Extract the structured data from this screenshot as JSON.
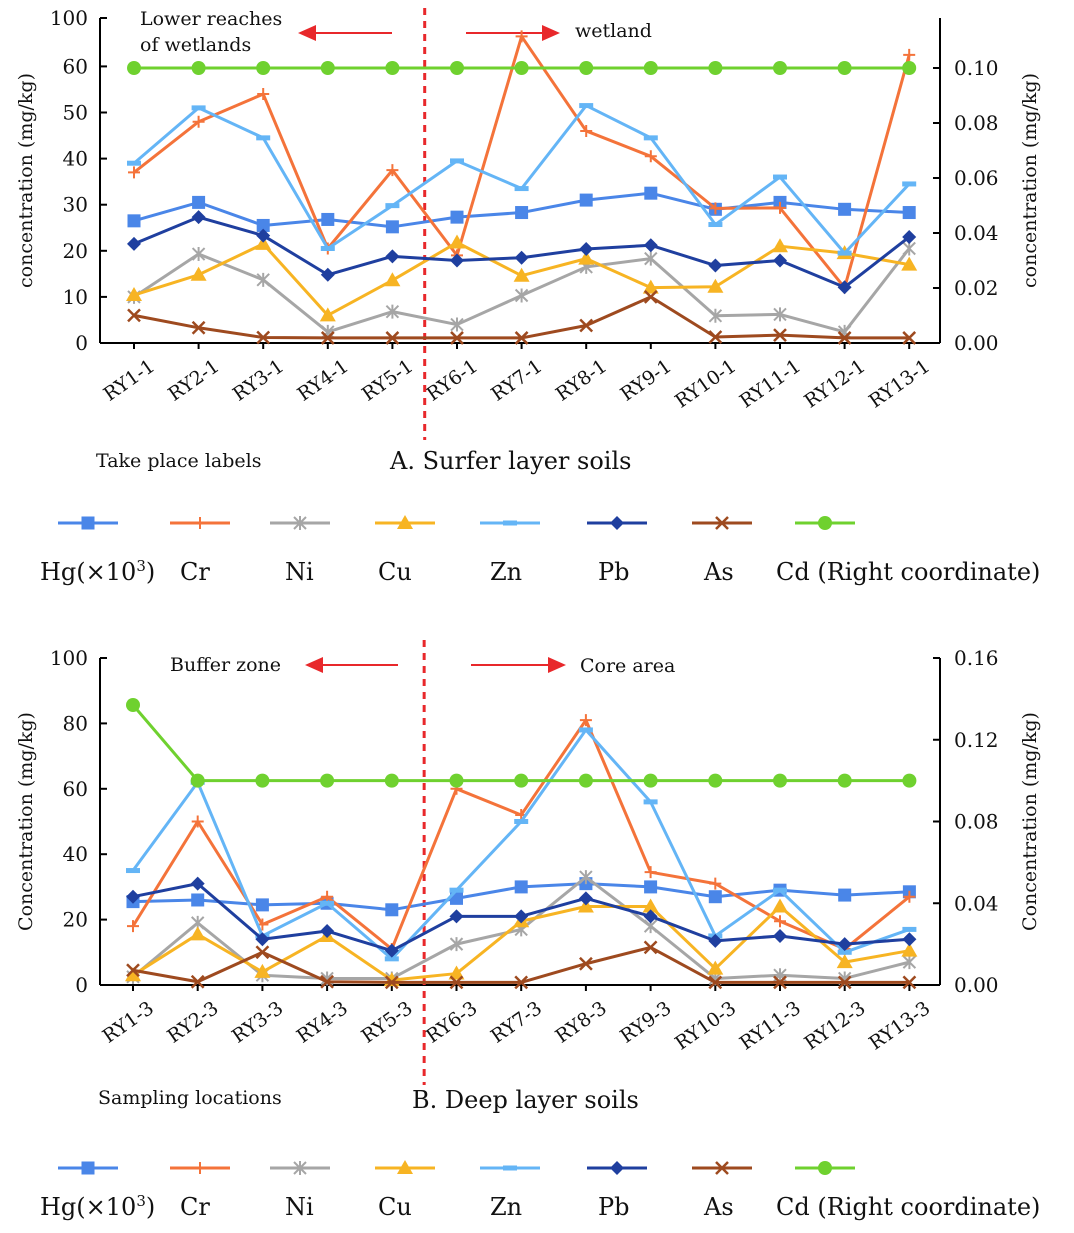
{
  "charts": [
    {
      "chart_data": {
        "type": "line",
        "title": "A. Surfer layer soils",
        "xlabel": "Take place labels",
        "ylabel_left": "concentration (mg/kg)",
        "ylabel_right": "concentration (mg/kg)",
        "categories": [
          "RY1-1",
          "RY2-1",
          "RY3-1",
          "RY4-1",
          "RY5-1",
          "RY6-1",
          "RY7-1",
          "RY8-1",
          "RY9-1",
          "RY10-1",
          "RY11-1",
          "RY12-1",
          "RY13-1"
        ],
        "ylim_left": [
          0,
          100
        ],
        "ylim_right": [
          0,
          0.12
        ],
        "yticks_left": [
          "0",
          "10",
          "20",
          "30",
          "40",
          "50",
          "60",
          "100"
        ],
        "yticks_right": [
          "0.00",
          "0.02",
          "0.04",
          "0.06",
          "0.08",
          "0.10"
        ],
        "left_axis_scale": "broken: ticks 0-60 evenly spaced, top tick labelled 100",
        "divider_after_index": 4,
        "annotations": {
          "left_zone": "Lower reaches\nof wetlands",
          "right_zone": "wetland"
        },
        "series": [
          {
            "name": "Hg(×10³)",
            "color": "#4a86e8",
            "marker": "square",
            "values": [
              26.5,
              30.5,
              25.5,
              26.8,
              25.2,
              27.3,
              28.3,
              31,
              32.5,
              29,
              30.5,
              29,
              28.3
            ]
          },
          {
            "name": "Cr",
            "color": "#f4733a",
            "marker": "plus",
            "values": [
              37,
              48,
              54,
              20.5,
              37.5,
              19,
              66.5,
              46,
              40.5,
              29.2,
              29.3,
              12,
              62.5
            ]
          },
          {
            "name": "Ni",
            "color": "#a6a6a6",
            "marker": "asterisk",
            "values": [
              10,
              19.3,
              13.7,
              2.4,
              6.8,
              4,
              10.3,
              16.5,
              18.3,
              5.9,
              6.2,
              2.4,
              20.5
            ]
          },
          {
            "name": "Cu",
            "color": "#f7b423",
            "marker": "triangle",
            "values": [
              10.4,
              14.8,
              21.5,
              6,
              13.6,
              21.8,
              14.6,
              18.3,
              12,
              12.2,
              21,
              19.5,
              17
            ]
          },
          {
            "name": "Zn",
            "color": "#64b5f6",
            "marker": "dash",
            "values": [
              39,
              51,
              44.5,
              20.5,
              29.8,
              39.5,
              33.5,
              51.5,
              44.5,
              25.7,
              36,
              19.5,
              34.5
            ]
          },
          {
            "name": "Pb",
            "color": "#1f3f9f",
            "marker": "diamond",
            "values": [
              21.5,
              27.3,
              23.3,
              14.8,
              18.8,
              17.9,
              18.5,
              20.4,
              21.2,
              16.8,
              17.9,
              12.1,
              23
            ]
          },
          {
            "name": "As",
            "color": "#9e4a1f",
            "marker": "x",
            "values": [
              6,
              3.3,
              1.2,
              1.1,
              1.1,
              1.1,
              1.1,
              3.8,
              10,
              1.3,
              1.7,
              1.1,
              1.1
            ]
          }
        ],
        "right_series": [
          {
            "name": "Cd (Right coordinate)",
            "color": "#6fd12f",
            "marker": "circle",
            "values": [
              0.1,
              0.1,
              0.1,
              0.1,
              0.1,
              0.1,
              0.1,
              0.1,
              0.1,
              0.1,
              0.1,
              0.1,
              0.1
            ]
          }
        ]
      }
    },
    {
      "chart_data": {
        "type": "line",
        "title": "B. Deep layer soils",
        "xlabel": "Sampling locations",
        "ylabel_left": "Concentration (mg/kg)",
        "ylabel_right": "Concentration (mg/kg)",
        "categories": [
          "RY1-3",
          "RY2-3",
          "RY3-3",
          "RY4-3",
          "RY5-3",
          "RY6-3",
          "RY7-3",
          "RY8-3",
          "RY9-3",
          "RY10-3",
          "RY11-3",
          "RY12-3",
          "RY13-3"
        ],
        "ylim_left": [
          0,
          100
        ],
        "ylim_right": [
          0,
          0.16
        ],
        "yticks_left": [
          "0",
          "20",
          "40",
          "60",
          "80",
          "100"
        ],
        "yticks_right": [
          "0.00",
          "0.04",
          "0.08",
          "0.12",
          "0.16"
        ],
        "left_axis_scale": "linear",
        "divider_after_index": 4,
        "annotations": {
          "left_zone": "Buffer zone",
          "right_zone": "Core area"
        },
        "series": [
          {
            "name": "Hg(×10³)",
            "color": "#4a86e8",
            "marker": "square",
            "values": [
              25.5,
              26,
              24.5,
              25,
              23,
              26.5,
              30,
              31,
              30,
              27,
              29,
              27.5,
              28.5
            ]
          },
          {
            "name": "Cr",
            "color": "#f4733a",
            "marker": "plus",
            "values": [
              18,
              50,
              18.5,
              27,
              11,
              60,
              52,
              81,
              34.5,
              31,
              19.5,
              11,
              27
            ]
          },
          {
            "name": "Ni",
            "color": "#a6a6a6",
            "marker": "asterisk",
            "values": [
              2.5,
              19,
              3,
              2,
              2,
              12.5,
              17,
              33,
              18,
              2,
              3,
              2,
              7
            ]
          },
          {
            "name": "Cu",
            "color": "#f7b423",
            "marker": "triangle",
            "values": [
              3,
              15.5,
              4,
              15,
              1.5,
              3.5,
              19.5,
              24,
              24,
              5,
              24,
              7,
              10.5
            ]
          },
          {
            "name": "Zn",
            "color": "#64b5f6",
            "marker": "dash",
            "values": [
              35,
              62,
              15,
              25,
              8,
              29,
              50,
              78,
              56,
              15,
              29,
              10,
              17
            ]
          },
          {
            "name": "Pb",
            "color": "#1f3f9f",
            "marker": "diamond",
            "values": [
              27,
              31,
              14,
              16.5,
              10.5,
              21,
              21,
              26.5,
              21,
              13.5,
              15,
              12.5,
              14
            ]
          },
          {
            "name": "As",
            "color": "#9e4a1f",
            "marker": "x",
            "values": [
              4.5,
              1,
              10,
              1,
              0.8,
              0.8,
              0.8,
              6.5,
              11.5,
              0.8,
              0.8,
              0.8,
              0.8
            ]
          }
        ],
        "right_series": [
          {
            "name": "Cd (Right coordinate)",
            "color": "#6fd12f",
            "marker": "circle",
            "values": [
              0.137,
              0.1,
              0.1,
              0.1,
              0.1,
              0.1,
              0.1,
              0.1,
              0.1,
              0.1,
              0.1,
              0.1,
              0.1
            ]
          }
        ]
      }
    }
  ],
  "legend": [
    {
      "label": "Hg(×10",
      "sup": "3",
      "tail": ")",
      "marker": "square",
      "color": "#4a86e8"
    },
    {
      "label": "Cr",
      "marker": "plus",
      "color": "#f4733a"
    },
    {
      "label": "Ni",
      "marker": "asterisk",
      "color": "#a6a6a6"
    },
    {
      "label": "Cu",
      "marker": "triangle",
      "color": "#f7b423"
    },
    {
      "label": "Zn",
      "marker": "dash",
      "color": "#64b5f6"
    },
    {
      "label": "Pb",
      "marker": "diamond",
      "color": "#1f3f9f"
    },
    {
      "label": "As",
      "marker": "x",
      "color": "#9e4a1f"
    },
    {
      "label": "Cd (Right coordinate)",
      "marker": "circle",
      "color": "#6fd12f"
    }
  ],
  "colors": {
    "divider": "#e8282b",
    "arrow": "#e8282b",
    "axis": "#000000"
  }
}
